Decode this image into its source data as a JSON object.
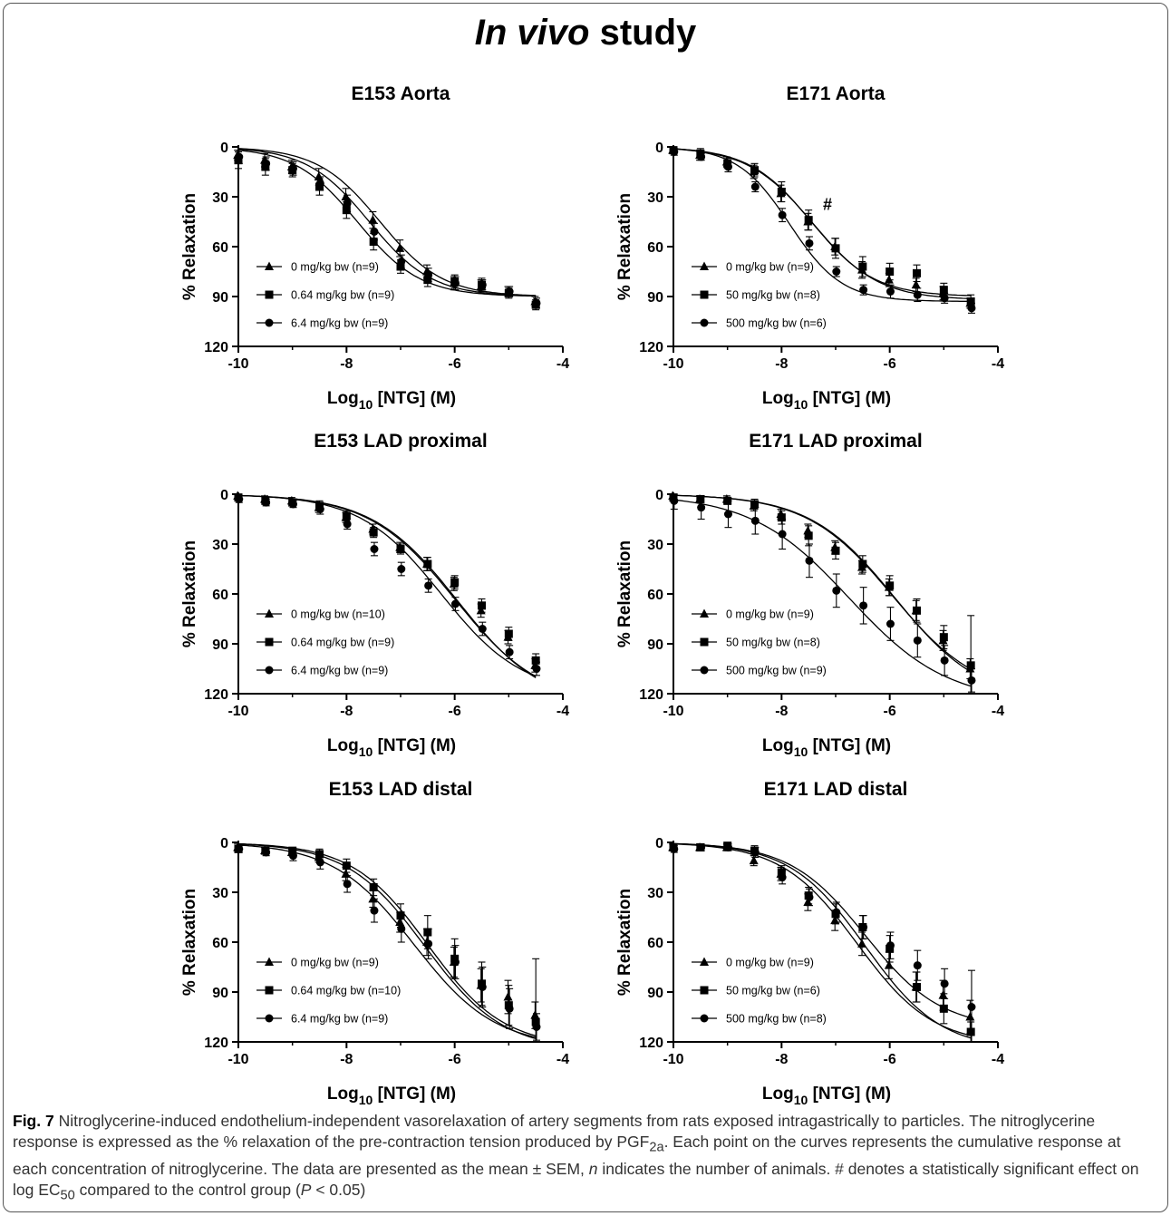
{
  "figure": {
    "title_part1": "In vivo",
    "title_part2": " study",
    "caption": {
      "fig_label": "Fig. 7",
      "text_1": " Nitroglycerine-induced endothelium-independent vasorelaxation of artery segments from rats exposed intragastrically to particles. The nitroglycerine response is expressed as the % relaxation of the pre-contraction tension produced by PGF",
      "sub_1": "2a",
      "text_2": ". Each point on the curves represents the cumulative response at each concentration of nitroglycerine. The data are presented as the mean ± SEM, ",
      "n_italic": "n",
      "text_3": " indicates the number of animals. # denotes a statistically significant effect on log EC",
      "sub_2": "50",
      "text_4": " compared to the control group (",
      "p_italic": "P",
      "text_5": " < 0.05)"
    }
  },
  "chart_data": [
    {
      "type": "scatter",
      "title": "E153 Aorta",
      "xlabel_main": "Log",
      "xlabel_sub": "10",
      "xlabel_rest": " [NTG] (M)",
      "ylabel": "% Relaxation",
      "xlim": [
        -10,
        -4
      ],
      "ylim": [
        0,
        120
      ],
      "y_inverted": true,
      "xticks": [
        -10,
        -8,
        -6,
        -4
      ],
      "yticks": [
        0,
        30,
        60,
        90,
        120
      ],
      "legend_position": "bottom-left",
      "annotation": "",
      "x": [
        -10,
        -9.5,
        -9,
        -8.5,
        -8,
        -7.5,
        -7,
        -6.5,
        -6,
        -5.5,
        -5,
        -4.5
      ],
      "series": [
        {
          "name": "0 mg/kg bw (n=9)",
          "marker": "triangle",
          "values": [
            5,
            8,
            12,
            18,
            30,
            44,
            61,
            75,
            82,
            84,
            87,
            93
          ],
          "errors": [
            3,
            4,
            4,
            5,
            5,
            5,
            5,
            4,
            4,
            4,
            3,
            3
          ],
          "fit": {
            "bottom": 0,
            "top": 90,
            "logec50": -7.38,
            "hill": 0.75
          }
        },
        {
          "name": "0.64 mg/kg bw (n=9)",
          "marker": "square",
          "values": [
            8,
            12,
            14,
            24,
            38,
            57,
            72,
            80,
            81,
            83,
            88,
            95
          ],
          "errors": [
            5,
            5,
            4,
            5,
            5,
            5,
            4,
            4,
            4,
            4,
            3,
            3
          ],
          "fit": {
            "bottom": 0,
            "top": 90,
            "logec50": -7.8,
            "hill": 0.75
          }
        },
        {
          "name": "6.4 mg/kg bw (n=9)",
          "marker": "circle",
          "values": [
            6,
            10,
            13,
            22,
            34,
            51,
            69,
            77,
            82,
            83,
            87,
            94
          ],
          "errors": [
            4,
            4,
            4,
            4,
            5,
            5,
            4,
            4,
            4,
            3,
            3,
            3
          ],
          "fit": {
            "bottom": 0,
            "top": 90,
            "logec50": -7.58,
            "hill": 0.75
          }
        }
      ]
    },
    {
      "type": "scatter",
      "title": "E171 Aorta",
      "xlabel_main": "Log",
      "xlabel_sub": "10",
      "xlabel_rest": " [NTG] (M)",
      "ylabel": "% Relaxation",
      "xlim": [
        -10,
        -4
      ],
      "ylim": [
        0,
        120
      ],
      "y_inverted": true,
      "xticks": [
        -10,
        -8,
        -6,
        -4
      ],
      "yticks": [
        0,
        30,
        60,
        90,
        120
      ],
      "legend_position": "bottom-left",
      "annotation": "#",
      "x": [
        -10,
        -9.5,
        -9,
        -8.5,
        -8,
        -7.5,
        -7,
        -6.5,
        -6,
        -5.5,
        -5,
        -4.5
      ],
      "series": [
        {
          "name": "0 mg/kg bw (n=9)",
          "marker": "triangle",
          "values": [
            2,
            5,
            9,
            15,
            28,
            45,
            60,
            74,
            80,
            83,
            88,
            94
          ],
          "errors": [
            2,
            3,
            3,
            4,
            5,
            5,
            5,
            5,
            4,
            4,
            4,
            3
          ],
          "fit": {
            "bottom": 0,
            "top": 90,
            "logec50": -7.45,
            "hill": 0.75
          }
        },
        {
          "name": "50 mg/kg bw (n=8)",
          "marker": "square",
          "values": [
            2,
            4,
            10,
            14,
            27,
            44,
            61,
            72,
            75,
            76,
            86,
            93
          ],
          "errors": [
            2,
            3,
            3,
            4,
            6,
            6,
            6,
            6,
            5,
            5,
            4,
            4
          ],
          "fit": {
            "bottom": 0,
            "top": 92,
            "logec50": -7.42,
            "hill": 0.72
          }
        },
        {
          "name": "500 mg/kg bw (n=6)",
          "marker": "circle",
          "values": [
            3,
            6,
            12,
            24,
            41,
            58,
            75,
            86,
            87,
            89,
            91,
            97
          ],
          "errors": [
            2,
            2,
            3,
            3,
            4,
            4,
            3,
            3,
            4,
            4,
            3,
            3
          ],
          "fit": {
            "bottom": 0,
            "top": 93,
            "logec50": -7.85,
            "hill": 0.9
          }
        }
      ]
    },
    {
      "type": "scatter",
      "title": "E153 LAD proximal",
      "xlabel_main": "Log",
      "xlabel_sub": "10",
      "xlabel_rest": " [NTG] (M)",
      "ylabel": "% Relaxation",
      "xlim": [
        -10,
        -4
      ],
      "ylim": [
        0,
        120
      ],
      "y_inverted": true,
      "xticks": [
        -10,
        -8,
        -6,
        -4
      ],
      "yticks": [
        0,
        30,
        60,
        90,
        120
      ],
      "legend_position": "bottom-left",
      "annotation": "",
      "x": [
        -10,
        -9.5,
        -9,
        -8.5,
        -8,
        -7.5,
        -7,
        -6.5,
        -6,
        -5.5,
        -5,
        -4.5
      ],
      "series": [
        {
          "name": "0 mg/kg bw (n=10)",
          "marker": "triangle",
          "values": [
            1,
            3,
            4,
            8,
            14,
            21,
            32,
            42,
            54,
            70,
            86,
            103
          ],
          "errors": [
            2,
            2,
            2,
            3,
            3,
            3,
            3,
            4,
            4,
            4,
            4,
            4
          ],
          "fit": {
            "bottom": 0,
            "top": 128,
            "logec50": -5.95,
            "hill": 0.55
          }
        },
        {
          "name": "0.64 mg/kg bw (n=9)",
          "marker": "square",
          "values": [
            2,
            4,
            5,
            7,
            13,
            23,
            33,
            42,
            53,
            67,
            84,
            100
          ],
          "errors": [
            2,
            2,
            2,
            3,
            3,
            3,
            3,
            4,
            4,
            4,
            4,
            4
          ],
          "fit": {
            "bottom": 0,
            "top": 126,
            "logec50": -6.0,
            "hill": 0.55
          }
        },
        {
          "name": "6.4 mg/kg bw (n=9)",
          "marker": "circle",
          "values": [
            3,
            5,
            6,
            9,
            18,
            33,
            45,
            55,
            66,
            81,
            95,
            105
          ],
          "errors": [
            2,
            2,
            2,
            3,
            3,
            4,
            4,
            4,
            4,
            4,
            4,
            4
          ],
          "fit": {
            "bottom": 0,
            "top": 120,
            "logec50": -6.25,
            "hill": 0.58
          }
        }
      ]
    },
    {
      "type": "scatter",
      "title": "E171 LAD proximal",
      "xlabel_main": "Log",
      "xlabel_sub": "10",
      "xlabel_rest": " [NTG] (M)",
      "ylabel": "% Relaxation",
      "xlim": [
        -10,
        -4
      ],
      "ylim": [
        0,
        120
      ],
      "y_inverted": true,
      "xticks": [
        -10,
        -8,
        -6,
        -4
      ],
      "yticks": [
        0,
        30,
        60,
        90,
        120
      ],
      "legend_position": "bottom-left",
      "annotation": "",
      "x": [
        -10,
        -9.5,
        -9,
        -8.5,
        -8,
        -7.5,
        -7,
        -6.5,
        -6,
        -5.5,
        -5,
        -4.5
      ],
      "series": [
        {
          "name": "0 mg/kg bw (n=9)",
          "marker": "triangle",
          "values": [
            1,
            3,
            3,
            7,
            12,
            22,
            32,
            44,
            56,
            70,
            88,
            105
          ],
          "errors": [
            2,
            2,
            2,
            3,
            3,
            4,
            4,
            4,
            5,
            6,
            6,
            6
          ],
          "fit": {
            "bottom": 0,
            "top": 125,
            "logec50": -5.9,
            "hill": 0.55
          }
        },
        {
          "name": "50 mg/kg bw (n=8)",
          "marker": "square",
          "values": [
            2,
            3,
            4,
            6,
            14,
            25,
            34,
            42,
            55,
            70,
            86,
            103
          ],
          "errors": [
            2,
            2,
            2,
            3,
            4,
            6,
            5,
            5,
            6,
            7,
            7,
            30
          ],
          "fit": {
            "bottom": 0,
            "top": 122,
            "logec50": -5.95,
            "hill": 0.55
          }
        },
        {
          "name": "500 mg/kg bw (n=9)",
          "marker": "circle",
          "values": [
            4,
            8,
            12,
            16,
            24,
            40,
            58,
            67,
            78,
            88,
            100,
            112
          ],
          "errors": [
            5,
            7,
            8,
            8,
            9,
            10,
            10,
            11,
            10,
            10,
            9,
            7
          ],
          "fit": {
            "bottom": 0,
            "top": 125,
            "logec50": -6.75,
            "hill": 0.48
          }
        }
      ]
    },
    {
      "type": "scatter",
      "title": "E153 LAD distal",
      "xlabel_main": "Log",
      "xlabel_sub": "10",
      "xlabel_rest": " [NTG] (M)",
      "ylabel": "% Relaxation",
      "xlim": [
        -10,
        -4
      ],
      "ylim": [
        0,
        120
      ],
      "y_inverted": true,
      "xticks": [
        -10,
        -8,
        -6,
        -4
      ],
      "yticks": [
        0,
        30,
        60,
        90,
        120
      ],
      "legend_position": "bottom-left",
      "annotation": "",
      "x": [
        -10,
        -9.5,
        -9,
        -8.5,
        -8,
        -7.5,
        -7,
        -6.5,
        -6,
        -5.5,
        -5,
        -4.5
      ],
      "series": [
        {
          "name": "0 mg/kg bw (n=9)",
          "marker": "triangle",
          "values": [
            3,
            5,
            6,
            9,
            19,
            34,
            48,
            60,
            72,
            86,
            93,
            104
          ],
          "errors": [
            2,
            2,
            2,
            3,
            4,
            5,
            6,
            8,
            9,
            10,
            10,
            8
          ],
          "fit": {
            "bottom": 0,
            "top": 125,
            "logec50": -6.55,
            "hill": 0.6
          }
        },
        {
          "name": "0.64 mg/kg bw (n=10)",
          "marker": "square",
          "values": [
            4,
            5,
            5,
            7,
            14,
            27,
            44,
            54,
            70,
            85,
            98,
            108
          ],
          "errors": [
            2,
            2,
            2,
            3,
            4,
            5,
            7,
            10,
            12,
            13,
            12,
            38
          ],
          "fit": {
            "bottom": 0,
            "top": 123,
            "logec50": -6.5,
            "hill": 0.62
          }
        },
        {
          "name": "6.4 mg/kg bw (n=9)",
          "marker": "circle",
          "values": [
            4,
            6,
            8,
            12,
            25,
            41,
            52,
            61,
            72,
            87,
            100,
            111
          ],
          "errors": [
            2,
            2,
            3,
            4,
            5,
            7,
            8,
            9,
            10,
            12,
            12,
            8
          ],
          "fit": {
            "bottom": 0,
            "top": 123,
            "logec50": -6.75,
            "hill": 0.58
          }
        }
      ]
    },
    {
      "type": "scatter",
      "title": "E171 LAD distal",
      "xlabel_main": "Log",
      "xlabel_sub": "10",
      "xlabel_rest": " [NTG] (M)",
      "ylabel": "% Relaxation",
      "xlim": [
        -10,
        -4
      ],
      "ylim": [
        0,
        120
      ],
      "y_inverted": true,
      "xticks": [
        -10,
        -8,
        -6,
        -4
      ],
      "yticks": [
        0,
        30,
        60,
        90,
        120
      ],
      "legend_position": "bottom-left",
      "annotation": "",
      "x": [
        -10,
        -9.5,
        -9,
        -8.5,
        -8,
        -7.5,
        -7,
        -6.5,
        -6,
        -5.5,
        -5,
        -4.5
      ],
      "series": [
        {
          "name": "0 mg/kg bw (n=9)",
          "marker": "triangle",
          "values": [
            3,
            3,
            3,
            11,
            19,
            36,
            47,
            61,
            74,
            87,
            92,
            105
          ],
          "errors": [
            2,
            2,
            2,
            3,
            4,
            5,
            6,
            7,
            8,
            9,
            9,
            10
          ],
          "fit": {
            "bottom": 0,
            "top": 122,
            "logec50": -6.6,
            "hill": 0.62
          }
        },
        {
          "name": "50 mg/kg bw (n=6)",
          "marker": "square",
          "values": [
            3,
            3,
            2,
            5,
            18,
            32,
            43,
            51,
            64,
            87,
            100,
            114
          ],
          "errors": [
            2,
            2,
            2,
            3,
            4,
            5,
            6,
            7,
            8,
            9,
            9,
            6
          ],
          "fit": {
            "bottom": 0,
            "top": 125,
            "logec50": -6.45,
            "hill": 0.62
          }
        },
        {
          "name": "500 mg/kg bw (n=8)",
          "marker": "circle",
          "values": [
            4,
            3,
            3,
            6,
            21,
            33,
            42,
            51,
            62,
            74,
            85,
            99
          ],
          "errors": [
            2,
            2,
            2,
            3,
            4,
            5,
            6,
            7,
            8,
            9,
            9,
            22
          ],
          "fit": {
            "bottom": 0,
            "top": 112,
            "logec50": -6.45,
            "hill": 0.62
          }
        }
      ]
    }
  ]
}
